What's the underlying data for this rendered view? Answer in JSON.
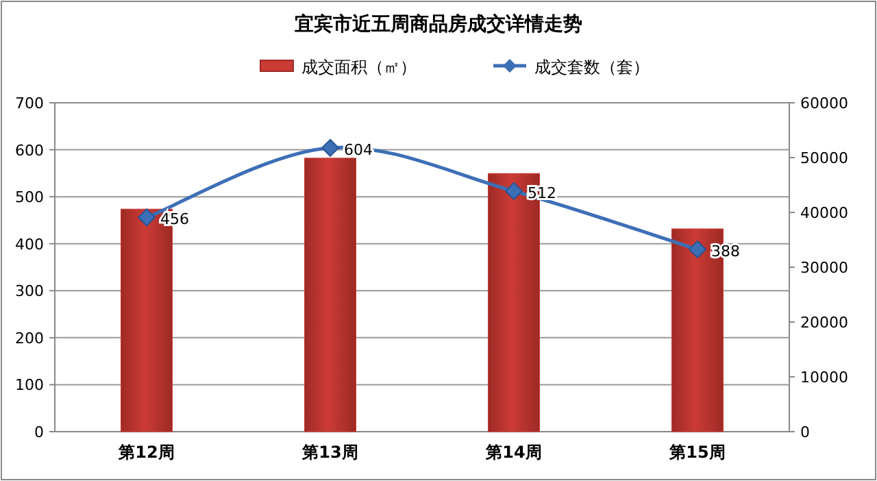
{
  "chart_data": {
    "type": "bar",
    "title": "宜宾市近五周商品房成交详情走势",
    "categories": [
      "第12周",
      "第13周",
      "第14周",
      "第15周"
    ],
    "series": [
      {
        "name": "成交面积（㎡）",
        "axis": "y2",
        "color": "#cc3b35",
        "values": [
          40600,
          49900,
          47100,
          37000
        ]
      },
      {
        "name": "成交套数（套）",
        "type": "line",
        "axis": "y",
        "color": "#3d6fb6",
        "marker": "diamond",
        "data_labels": true,
        "values": [
          456,
          604,
          512,
          388
        ]
      }
    ],
    "ylim": [
      0,
      700
    ],
    "yticks": [
      0,
      100,
      200,
      300,
      400,
      500,
      600,
      700
    ],
    "y2lim": [
      0,
      60000
    ],
    "y2ticks": [
      0,
      10000,
      20000,
      30000,
      40000,
      50000,
      60000
    ],
    "grid": "y",
    "legend": "top"
  }
}
